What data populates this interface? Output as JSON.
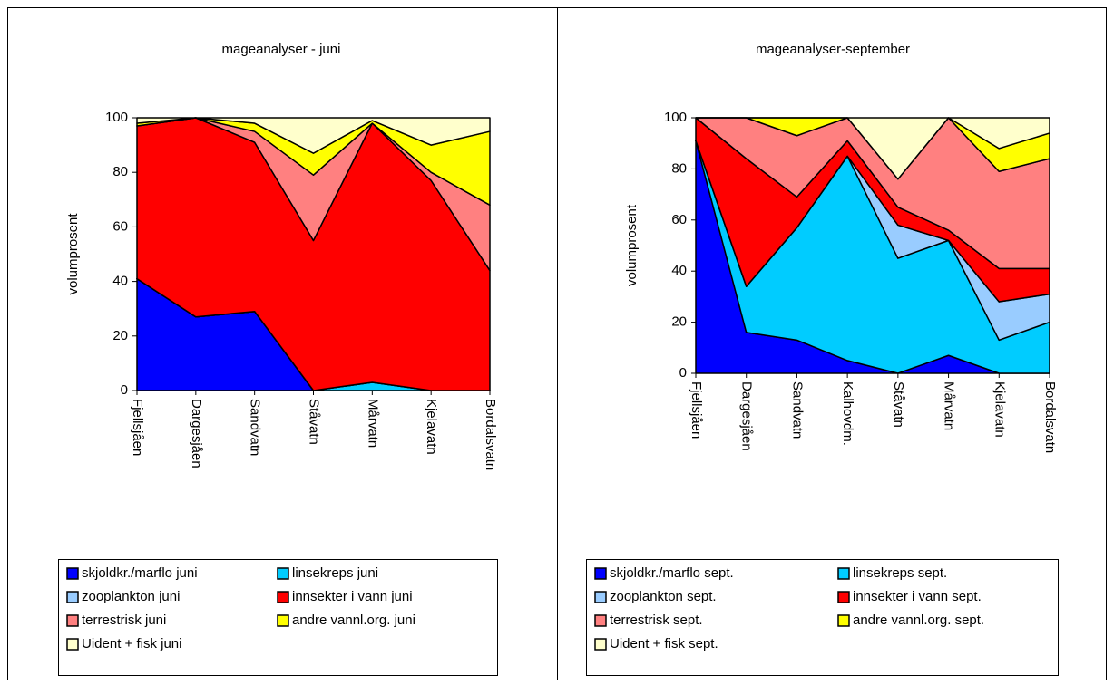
{
  "chart_data": [
    {
      "type": "stacked-area",
      "title": "mageanalyser - juni",
      "y_label": "volumprosent",
      "categories": [
        "Fjellsjåen",
        "Dargesjåen",
        "Sandvatn",
        "Ståvatn",
        "Mårvatn",
        "Kjelavatn",
        "Bordalsvatn"
      ],
      "ylim": [
        0,
        100
      ],
      "yticks": [
        0,
        20,
        40,
        60,
        80,
        100
      ],
      "series": [
        {
          "name": "skjoldkr./marflo juni",
          "color": "#0000ff",
          "values": [
            41,
            27,
            29,
            0,
            0,
            0,
            0
          ]
        },
        {
          "name": "linsekreps juni",
          "color": "#00ccff",
          "values": [
            0,
            0,
            0,
            0,
            3,
            0,
            0
          ]
        },
        {
          "name": "zooplankton juni",
          "color": "#99ccff",
          "values": [
            0,
            0,
            0,
            0,
            0,
            0,
            0
          ]
        },
        {
          "name": "innsekter i vann juni",
          "color": "#ff0000",
          "values": [
            56,
            73,
            62,
            55,
            95,
            77,
            44
          ]
        },
        {
          "name": "terrestrisk juni",
          "color": "#ff8080",
          "values": [
            0,
            0,
            4,
            24,
            0,
            3,
            24
          ]
        },
        {
          "name": "andre vannl.org. juni",
          "color": "#ffff00",
          "values": [
            1,
            0,
            3,
            8,
            1,
            10,
            27
          ]
        },
        {
          "name": "Uident + fisk juni",
          "color": "#ffffcc",
          "values": [
            2,
            0,
            2,
            13,
            1,
            10,
            5
          ]
        }
      ]
    },
    {
      "type": "stacked-area",
      "title": "mageanalyser-september",
      "y_label": "volumprosent",
      "categories": [
        "Fjellsjåen",
        "Dargesjåen",
        "Sandvatn",
        "Kalhovdm.",
        "Ståvatn",
        "Mårvatn",
        "Kjelavatn",
        "Bordalsvatn"
      ],
      "ylim": [
        0,
        100
      ],
      "yticks": [
        0,
        20,
        40,
        60,
        80,
        100
      ],
      "series": [
        {
          "name": "skjoldkr./marflo sept.",
          "color": "#0000ff",
          "values": [
            91,
            16,
            13,
            5,
            0,
            7,
            0,
            0
          ]
        },
        {
          "name": "linsekreps sept.",
          "color": "#00ccff",
          "values": [
            0,
            18,
            44,
            80,
            45,
            45,
            13,
            20
          ]
        },
        {
          "name": "zooplankton sept.",
          "color": "#99ccff",
          "values": [
            0,
            0,
            0,
            0,
            13,
            0,
            15,
            11
          ]
        },
        {
          "name": "innsekter i vann sept.",
          "color": "#ff0000",
          "values": [
            9,
            50,
            12,
            6,
            7,
            4,
            13,
            10
          ]
        },
        {
          "name": "terrestrisk sept.",
          "color": "#ff8080",
          "values": [
            0,
            16,
            24,
            9,
            11,
            44,
            38,
            43
          ]
        },
        {
          "name": "andre vannl.org. sept.",
          "color": "#ffff00",
          "values": [
            0,
            0,
            7,
            0,
            0,
            0,
            9,
            10
          ]
        },
        {
          "name": "Uident + fisk sept.",
          "color": "#ffffcc",
          "values": [
            0,
            0,
            0,
            0,
            24,
            0,
            12,
            6
          ]
        }
      ]
    }
  ]
}
